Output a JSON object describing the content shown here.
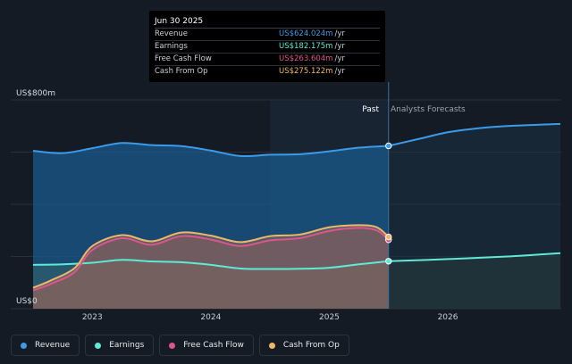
{
  "tooltip": {
    "date": "Jun 30 2025",
    "rows": [
      {
        "name": "Revenue",
        "value": "US$624.024m",
        "unit": "/yr",
        "color": "#3b9be8"
      },
      {
        "name": "Earnings",
        "value": "US$182.175m",
        "unit": "/yr",
        "color": "#5eead4"
      },
      {
        "name": "Free Cash Flow",
        "value": "US$263.604m",
        "unit": "/yr",
        "color": "#e0548a"
      },
      {
        "name": "Cash From Op",
        "value": "US$275.122m",
        "unit": "/yr",
        "color": "#f0b866"
      }
    ]
  },
  "legend": [
    {
      "label": "Revenue",
      "color": "#3b9be8"
    },
    {
      "label": "Earnings",
      "color": "#5eead4"
    },
    {
      "label": "Free Cash Flow",
      "color": "#e0548a"
    },
    {
      "label": "Cash From Op",
      "color": "#f0b866"
    }
  ],
  "chart_data": {
    "type": "area",
    "y_top_label": "US$800m",
    "y_bottom_label": "US$0",
    "ylim": [
      0,
      800
    ],
    "xlim": [
      2022.5,
      2026.95
    ],
    "x_ticks": [
      "2023",
      "2024",
      "2025",
      "2026"
    ],
    "x_tick_values": [
      2023,
      2024,
      2025,
      2026
    ],
    "past_label": "Past",
    "forecast_label": "Analysts Forecasts",
    "past_end": 2025.5,
    "shaded_start": 2024.5,
    "series": [
      {
        "name": "Revenue",
        "color": "#3b9be8",
        "x": [
          2022.5,
          2022.75,
          2023.0,
          2023.25,
          2023.5,
          2023.75,
          2024.0,
          2024.25,
          2024.5,
          2024.75,
          2025.0,
          2025.25,
          2025.5
        ],
        "y": [
          605,
          596,
          615,
          635,
          627,
          623,
          606,
          585,
          590,
          592,
          603,
          617,
          624
        ],
        "forecast_x": [
          2025.5,
          2025.75,
          2026.0,
          2026.25,
          2026.5,
          2026.95
        ],
        "forecast_y": [
          624,
          650,
          676,
          691,
          700,
          708
        ]
      },
      {
        "name": "Earnings",
        "color": "#5eead4",
        "x": [
          2022.5,
          2022.75,
          2023.0,
          2023.25,
          2023.5,
          2023.75,
          2024.0,
          2024.25,
          2024.5,
          2024.75,
          2025.0,
          2025.25,
          2025.5
        ],
        "y": [
          168,
          170,
          176,
          187,
          181,
          178,
          168,
          154,
          152,
          153,
          157,
          170,
          182
        ],
        "forecast_x": [
          2025.5,
          2026.0,
          2026.5,
          2026.95
        ],
        "forecast_y": [
          182,
          190,
          200,
          213
        ]
      },
      {
        "name": "Free Cash Flow",
        "color": "#e0548a",
        "x": [
          2022.5,
          2022.65,
          2022.85,
          2023.0,
          2023.25,
          2023.5,
          2023.75,
          2024.0,
          2024.25,
          2024.5,
          2024.75,
          2025.0,
          2025.25,
          2025.4,
          2025.5
        ],
        "y": [
          70,
          95,
          140,
          225,
          270,
          245,
          278,
          265,
          240,
          262,
          270,
          298,
          310,
          300,
          264
        ],
        "forecast_x": [],
        "forecast_y": []
      },
      {
        "name": "Cash From Op",
        "color": "#f0b866",
        "x": [
          2022.5,
          2022.65,
          2022.85,
          2023.0,
          2023.25,
          2023.5,
          2023.75,
          2024.0,
          2024.25,
          2024.5,
          2024.75,
          2025.0,
          2025.25,
          2025.4,
          2025.5
        ],
        "y": [
          80,
          108,
          155,
          240,
          282,
          258,
          292,
          280,
          255,
          278,
          284,
          312,
          320,
          312,
          275
        ],
        "forecast_x": [],
        "forecast_y": []
      }
    ]
  }
}
